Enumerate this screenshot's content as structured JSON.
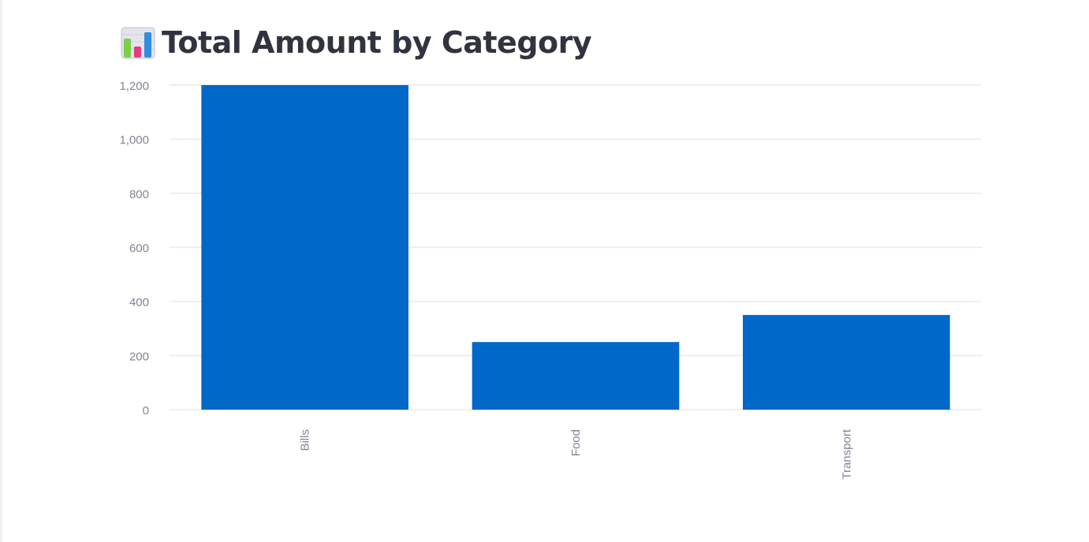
{
  "header": {
    "title": "Total Amount by Category",
    "icon": "bar-chart-icon"
  },
  "chart_data": {
    "type": "bar",
    "categories": [
      "Bills",
      "Food",
      "Transport"
    ],
    "values": [
      1200,
      250,
      350
    ],
    "ylim": [
      0,
      1200
    ],
    "yticks": [
      0,
      200,
      400,
      600,
      800,
      1000,
      1200
    ],
    "ytick_labels": [
      "0",
      "200",
      "400",
      "600",
      "800",
      "1,000",
      "1,200"
    ],
    "xlabel_rotation": "vertical",
    "grid": true,
    "bar_color": "#0068c9",
    "grid_color": "#e6eaf1",
    "label_color": "#808495"
  }
}
